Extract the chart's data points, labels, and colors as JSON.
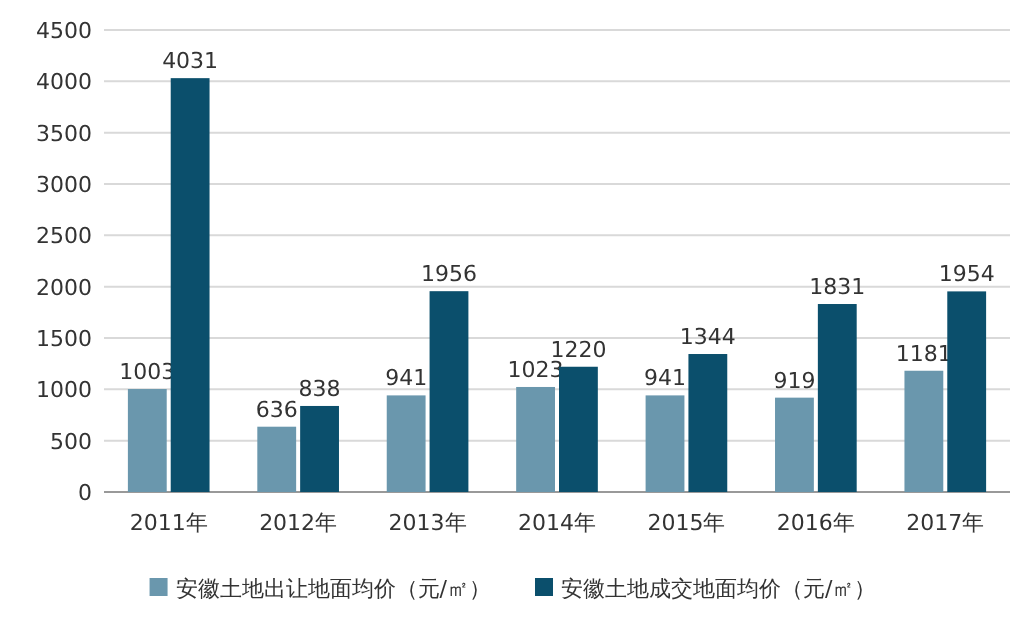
{
  "chart_data": {
    "type": "bar",
    "categories": [
      "2011年",
      "2012年",
      "2013年",
      "2014年",
      "2015年",
      "2016年",
      "2017年"
    ],
    "series": [
      {
        "name": "安徽土地出让地面均价（元/㎡）",
        "color": "#6a97ad",
        "values": [
          1003,
          636,
          941,
          1023,
          941,
          919,
          1181
        ]
      },
      {
        "name": "安徽土地成交地面均价（元/㎡）",
        "color": "#0b4f6c",
        "values": [
          4031,
          838,
          1956,
          1220,
          1344,
          1831,
          1954
        ]
      }
    ],
    "ylim": [
      0,
      4500
    ],
    "yticks": [
      0,
      500,
      1000,
      1500,
      2000,
      2500,
      3000,
      3500,
      4000,
      4500
    ],
    "grid": "y",
    "legend": "bottom",
    "data_labels": true
  }
}
